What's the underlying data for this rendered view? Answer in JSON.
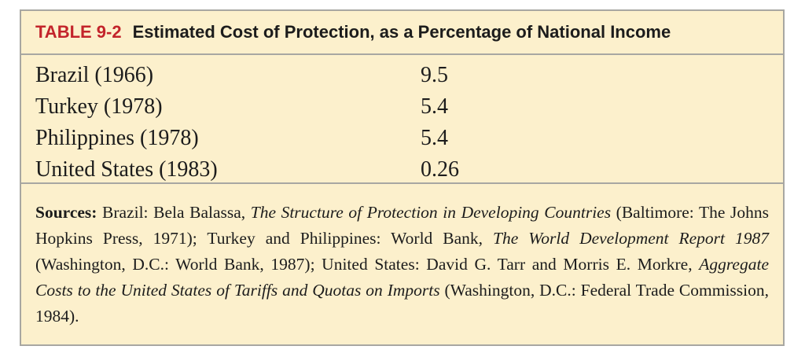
{
  "table": {
    "label": "TABLE 9-2",
    "title": "Estimated Cost of Protection, as a Percentage of National Income",
    "rows": [
      {
        "country": "Brazil (1966)",
        "value": "9.5"
      },
      {
        "country": "Turkey (1978)",
        "value": "5.4"
      },
      {
        "country": "Philippines (1978)",
        "value": "5.4"
      },
      {
        "country": "United States (1983)",
        "value": "0.26"
      }
    ],
    "sources": {
      "heading": "Sources:",
      "s1": " Brazil: Bela Balassa, ",
      "s1_title": "The Structure of Protection in Developing Countries",
      "s2": " (Baltimore: The Johns Hopkins Press, 1971); Turkey and Philippines: World Bank, ",
      "s2_title": "The World Development Report 1987",
      "s3": " (Washington, D.C.: World Bank, 1987); United States: David G. Tarr and Morris E. Morkre, ",
      "s3_title": "Aggregate Costs to the United States of Tariffs and Quotas on Imports",
      "s4": " (Washington, D.C.: Federal Trade Commission, 1984)."
    }
  }
}
